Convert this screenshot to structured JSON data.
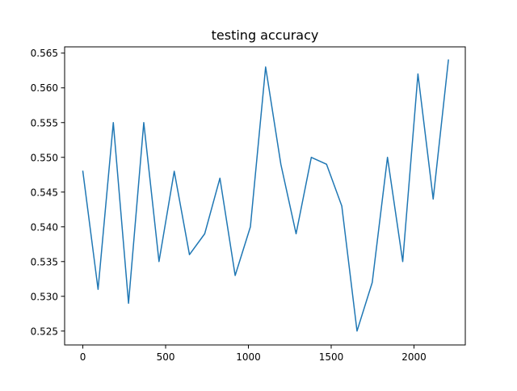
{
  "chart_data": {
    "type": "line",
    "title": "testing accuracy",
    "xlabel": "",
    "ylabel": "",
    "xlim": [
      -110,
      2310
    ],
    "ylim": [
      0.523,
      0.5659
    ],
    "xticks": [
      0,
      500,
      1000,
      1500,
      2000
    ],
    "xtick_labels": [
      "0",
      "500",
      "1000",
      "1500",
      "2000"
    ],
    "yticks": [
      0.525,
      0.53,
      0.535,
      0.54,
      0.545,
      0.55,
      0.555,
      0.56,
      0.565
    ],
    "ytick_labels": [
      "0.525",
      "0.530",
      "0.535",
      "0.540",
      "0.545",
      "0.550",
      "0.555",
      "0.560",
      "0.565"
    ],
    "grid": false,
    "legend": "none",
    "series": [
      {
        "color": "#1f77b4",
        "x": [
          0,
          92,
          184,
          276,
          368,
          460,
          552,
          644,
          736,
          828,
          920,
          1012,
          1104,
          1196,
          1288,
          1380,
          1472,
          1564,
          1656,
          1748,
          1840,
          1932,
          2024,
          2116,
          2208
        ],
        "y": [
          0.548,
          0.531,
          0.555,
          0.529,
          0.555,
          0.535,
          0.548,
          0.536,
          0.539,
          0.547,
          0.533,
          0.54,
          0.563,
          0.549,
          0.539,
          0.55,
          0.549,
          0.543,
          0.525,
          0.532,
          0.55,
          0.535,
          0.562,
          0.544,
          0.564
        ]
      }
    ]
  }
}
